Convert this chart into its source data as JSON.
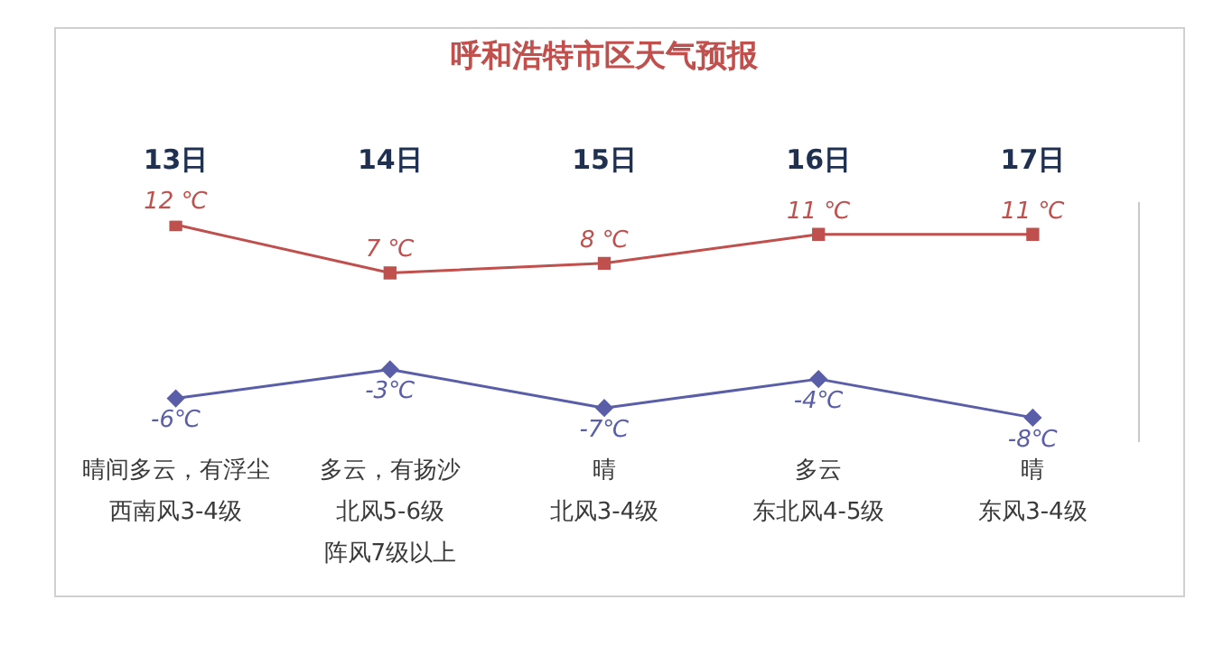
{
  "chart_data": {
    "type": "line",
    "title": "呼和浩特市区天气预报",
    "categories": [
      "13日",
      "14日",
      "15日",
      "16日",
      "17日"
    ],
    "series": [
      {
        "color": "#c0504d",
        "marker": "square",
        "values": [
          12,
          7,
          8,
          11,
          11
        ],
        "value_labels": [
          "12 ℃",
          "7 ℃",
          "8 ℃",
          "11 ℃",
          "11 ℃"
        ]
      },
      {
        "color": "#5a5ea8",
        "marker": "diamond",
        "values": [
          -6,
          -3,
          -7,
          -4,
          -8
        ],
        "value_labels": [
          "-6℃",
          "-3℃",
          "-7℃",
          "-4℃",
          "-8℃"
        ]
      }
    ],
    "annotations": [
      "晴间多云，有浮尘",
      "西南风3-4级",
      "多云，有扬沙",
      "北风5-6级",
      "阵风7级以上",
      "晴",
      "北风3-4级",
      "多云",
      "东北风4-5级",
      "晴",
      "东风3-4级"
    ],
    "grid": false,
    "legend": false,
    "line_style": "solid"
  }
}
